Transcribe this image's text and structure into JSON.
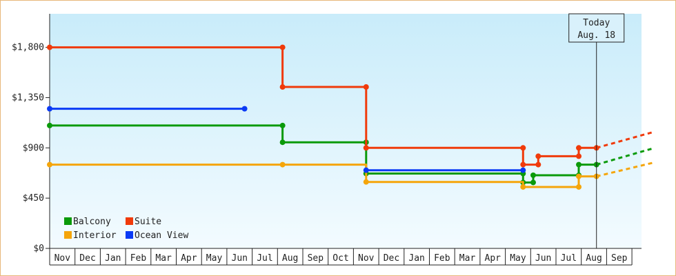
{
  "chart_data": {
    "type": "line",
    "step": true,
    "title": "",
    "xlabel": "",
    "ylabel": "",
    "ylim": [
      0,
      2100
    ],
    "yticks": [
      {
        "value": 0,
        "label": "$0"
      },
      {
        "value": 450,
        "label": "$450"
      },
      {
        "value": 900,
        "label": "$900"
      },
      {
        "value": 1350,
        "label": "$1,350"
      },
      {
        "value": 1800,
        "label": "$1,800"
      }
    ],
    "months": [
      "Nov",
      "Dec",
      "Jan",
      "Feb",
      "Mar",
      "Apr",
      "May",
      "Jun",
      "Jul",
      "Aug",
      "Sep",
      "Oct",
      "Nov",
      "Dec",
      "Jan",
      "Feb",
      "Mar",
      "Apr",
      "May",
      "Jun",
      "Jul",
      "Aug",
      "Sep"
    ],
    "x_unit": "month index (0 = start of first Nov)",
    "legend_position": "bottom-left",
    "today": {
      "line1": "Today",
      "line2": "Aug. 18",
      "x": 21.6
    },
    "series": [
      {
        "name": "Balcony",
        "color": "#0a9a0a",
        "points": [
          [
            0,
            1100
          ],
          [
            9.2,
            1100
          ],
          [
            9.2,
            950
          ],
          [
            12.5,
            950
          ],
          [
            12.5,
            670
          ],
          [
            18.7,
            670
          ],
          [
            18.7,
            590
          ],
          [
            19.1,
            590
          ],
          [
            19.1,
            655
          ],
          [
            20.9,
            655
          ],
          [
            20.9,
            750
          ],
          [
            21.6,
            750
          ]
        ],
        "markers": [
          [
            0,
            1100
          ],
          [
            9.2,
            1100
          ],
          [
            9.2,
            950
          ],
          [
            12.5,
            950
          ],
          [
            12.5,
            670
          ],
          [
            18.7,
            670
          ],
          [
            18.7,
            590
          ],
          [
            19.1,
            590
          ],
          [
            19.1,
            655
          ],
          [
            20.9,
            655
          ],
          [
            20.9,
            750
          ],
          [
            21.6,
            750
          ]
        ],
        "projection": [
          [
            21.6,
            750
          ],
          [
            23.9,
            900
          ]
        ]
      },
      {
        "name": "Suite",
        "color": "#f03a0a",
        "points": [
          [
            0,
            1800
          ],
          [
            9.2,
            1800
          ],
          [
            9.2,
            1445
          ],
          [
            12.5,
            1445
          ],
          [
            12.5,
            900
          ],
          [
            18.7,
            900
          ],
          [
            18.7,
            750
          ],
          [
            19.3,
            750
          ],
          [
            19.3,
            825
          ],
          [
            20.9,
            825
          ],
          [
            20.9,
            900
          ],
          [
            21.6,
            900
          ]
        ],
        "markers": [
          [
            0,
            1800
          ],
          [
            9.2,
            1800
          ],
          [
            9.2,
            1445
          ],
          [
            12.5,
            1445
          ],
          [
            12.5,
            900
          ],
          [
            18.7,
            900
          ],
          [
            18.7,
            750
          ],
          [
            19.3,
            750
          ],
          [
            19.3,
            825
          ],
          [
            20.9,
            825
          ],
          [
            20.9,
            900
          ],
          [
            21.6,
            900
          ]
        ],
        "projection": [
          [
            21.6,
            900
          ],
          [
            23.9,
            1045
          ]
        ]
      },
      {
        "name": "Interior",
        "color": "#f5a50a",
        "points": [
          [
            0,
            750
          ],
          [
            9.2,
            750
          ],
          [
            12.5,
            750
          ],
          [
            12.5,
            595
          ],
          [
            18.7,
            595
          ],
          [
            18.7,
            550
          ],
          [
            20.9,
            550
          ],
          [
            20.9,
            645
          ],
          [
            21.6,
            645
          ]
        ],
        "markers": [
          [
            0,
            750
          ],
          [
            9.2,
            750
          ],
          [
            12.5,
            595
          ],
          [
            18.7,
            550
          ],
          [
            20.9,
            550
          ],
          [
            20.9,
            645
          ],
          [
            21.6,
            645
          ]
        ],
        "projection": [
          [
            21.6,
            645
          ],
          [
            23.9,
            770
          ]
        ]
      },
      {
        "name": "Ocean View",
        "color": "#0a3af5",
        "points": [
          [
            0,
            1250
          ],
          [
            7.7,
            1250
          ]
        ],
        "markers": [
          [
            0,
            1250
          ],
          [
            7.7,
            1250
          ]
        ],
        "points2": [
          [
            12.5,
            700
          ],
          [
            18.7,
            700
          ]
        ],
        "markers2": [
          [
            12.5,
            700
          ],
          [
            18.7,
            700
          ]
        ],
        "projection": []
      }
    ]
  }
}
